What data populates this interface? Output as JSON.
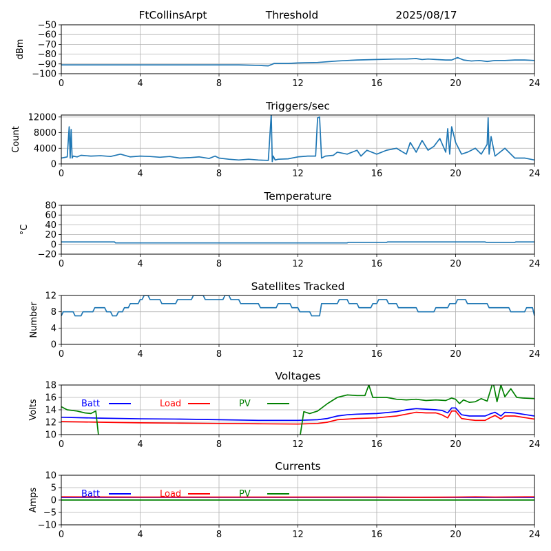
{
  "header": {
    "station": "FtCollinsArpt",
    "metric": "Threshold",
    "date": "2025/08/17"
  },
  "chart_data": [
    {
      "id": "threshold",
      "type": "line",
      "title": "",
      "xlabel": "",
      "ylabel": "dBm",
      "xlim": [
        0,
        24
      ],
      "ylim": [
        -100,
        -50
      ],
      "xticks": [
        0,
        4,
        8,
        12,
        16,
        20,
        24
      ],
      "yticks": [
        -100,
        -90,
        -80,
        -70,
        -60,
        -50
      ],
      "grid": true,
      "series": [
        {
          "color": "#1f77b4",
          "x": [
            0,
            2,
            4,
            6,
            8,
            9,
            10,
            10.5,
            10.8,
            11.5,
            12,
            13,
            14,
            15,
            16,
            17,
            17.5,
            18,
            18.3,
            18.6,
            19,
            19.5,
            19.8,
            20.1,
            20.4,
            20.8,
            21.2,
            21.6,
            22,
            22.5,
            23,
            23.5,
            24
          ],
          "y": [
            -91,
            -91,
            -91,
            -91,
            -91,
            -91,
            -91.5,
            -92,
            -89.5,
            -89.5,
            -89,
            -88.5,
            -87,
            -86,
            -85.5,
            -85,
            -85,
            -84.5,
            -85.5,
            -85,
            -85.5,
            -86,
            -86,
            -83.5,
            -86,
            -87,
            -86.5,
            -87.5,
            -86.5,
            -86.5,
            -86,
            -86,
            -86.5
          ]
        }
      ]
    },
    {
      "id": "triggers",
      "type": "line",
      "title": "Triggers/sec",
      "xlabel": "",
      "ylabel": "Count",
      "xlim": [
        0,
        24
      ],
      "ylim": [
        0,
        12500
      ],
      "xticks": [
        0,
        4,
        8,
        12,
        16,
        20,
        24
      ],
      "yticks": [
        0,
        4000,
        8000,
        12000
      ],
      "grid": true,
      "series": [
        {
          "color": "#1f77b4",
          "x": [
            0,
            0.3,
            0.4,
            0.45,
            0.5,
            0.55,
            0.6,
            0.8,
            1.0,
            1.5,
            2.0,
            2.5,
            3.0,
            3.5,
            4.0,
            4.5,
            5.0,
            5.5,
            6.0,
            6.5,
            7.0,
            7.5,
            7.8,
            8.0,
            8.5,
            9.0,
            9.5,
            10.0,
            10.5,
            10.65,
            10.7,
            10.75,
            10.85,
            11.0,
            11.5,
            12.0,
            12.5,
            12.9,
            13.0,
            13.1,
            13.2,
            13.4,
            13.8,
            14.0,
            14.5,
            15.0,
            15.2,
            15.5,
            16.0,
            16.5,
            17.0,
            17.5,
            17.7,
            18.0,
            18.3,
            18.6,
            18.9,
            19.2,
            19.5,
            19.6,
            19.7,
            19.8,
            20.0,
            20.3,
            20.6,
            21.0,
            21.3,
            21.6,
            21.65,
            21.7,
            21.8,
            22.0,
            22.5,
            23.0,
            23.5,
            24.0
          ],
          "y": [
            1500,
            1800,
            9500,
            1500,
            8800,
            1500,
            2000,
            1800,
            2200,
            2000,
            2100,
            1900,
            2500,
            1800,
            2000,
            1900,
            1700,
            1900,
            1500,
            1600,
            1800,
            1400,
            2000,
            1500,
            1200,
            1000,
            1200,
            1000,
            900,
            12800,
            600,
            2000,
            1000,
            1200,
            1300,
            1800,
            2000,
            2000,
            11800,
            12000,
            1500,
            2000,
            2200,
            3000,
            2500,
            3500,
            2000,
            3500,
            2500,
            3500,
            4000,
            2500,
            5500,
            3000,
            6000,
            3500,
            4500,
            6500,
            3000,
            9000,
            2500,
            9500,
            5500,
            2500,
            3000,
            4000,
            2500,
            5000,
            11800,
            2500,
            7000,
            2000,
            4000,
            1500,
            1500,
            1000
          ]
        }
      ]
    },
    {
      "id": "temperature",
      "type": "line",
      "title": "Temperature",
      "xlabel": "",
      "ylabel": "°C",
      "xlim": [
        0,
        24
      ],
      "ylim": [
        -20,
        80
      ],
      "xticks": [
        0,
        4,
        8,
        12,
        16,
        20,
        24
      ],
      "yticks": [
        -20,
        0,
        20,
        40,
        60,
        80
      ],
      "grid": true,
      "series": [
        {
          "color": "#1f77b4",
          "x": [
            0,
            2.7,
            2.75,
            14.5,
            14.55,
            16.5,
            16.55,
            21.5,
            21.55,
            23.0,
            23.05,
            24
          ],
          "y": [
            5,
            5,
            3,
            3,
            4,
            4,
            5,
            5,
            4,
            4,
            5,
            5
          ]
        }
      ]
    },
    {
      "id": "satellites",
      "type": "line",
      "title": "Satellites Tracked",
      "xlabel": "",
      "ylabel": "Number",
      "xlim": [
        0,
        24
      ],
      "ylim": [
        0,
        12
      ],
      "xticks": [
        0,
        4,
        8,
        12,
        16,
        20,
        24
      ],
      "yticks": [
        0,
        4,
        8,
        12
      ],
      "grid": true,
      "series": [
        {
          "color": "#1f77b4",
          "x": [
            0,
            0.1,
            0.6,
            0.7,
            1.0,
            1.1,
            1.6,
            1.7,
            2.2,
            2.3,
            2.5,
            2.6,
            2.8,
            2.9,
            3.1,
            3.2,
            3.4,
            3.5,
            3.9,
            4.0,
            4.1,
            4.2,
            4.4,
            4.5,
            5.0,
            5.1,
            5.8,
            5.9,
            6.6,
            6.7,
            7.2,
            7.3,
            8.2,
            8.3,
            8.5,
            8.6,
            9.0,
            9.1,
            10.0,
            10.1,
            10.9,
            11.0,
            11.6,
            11.7,
            12.0,
            12.1,
            12.6,
            12.7,
            13.1,
            13.2,
            14.0,
            14.1,
            14.5,
            14.6,
            15.0,
            15.1,
            15.7,
            15.8,
            16.0,
            16.1,
            16.5,
            16.6,
            17.0,
            17.1,
            18.0,
            18.1,
            18.9,
            19.0,
            19.6,
            19.7,
            20.0,
            20.1,
            20.5,
            20.6,
            21.6,
            21.7,
            22.7,
            22.8,
            23.5,
            23.6,
            23.9,
            24.0
          ],
          "y": [
            7,
            8,
            8,
            7,
            7,
            8,
            8,
            9,
            9,
            8,
            8,
            7,
            7,
            8,
            8,
            9,
            9,
            10,
            10,
            11,
            11,
            12,
            12,
            11,
            11,
            10,
            10,
            11,
            11,
            12,
            12,
            11,
            11,
            12,
            12,
            11,
            11,
            10,
            10,
            9,
            9,
            10,
            10,
            9,
            9,
            8,
            8,
            7,
            7,
            10,
            10,
            11,
            11,
            10,
            10,
            9,
            9,
            10,
            10,
            11,
            11,
            10,
            10,
            9,
            9,
            8,
            8,
            9,
            9,
            10,
            10,
            11,
            11,
            10,
            10,
            9,
            9,
            8,
            8,
            9,
            9,
            7
          ]
        }
      ]
    },
    {
      "id": "voltages",
      "type": "line",
      "title": "Voltages",
      "xlabel": "",
      "ylabel": "Volts",
      "xlim": [
        0,
        24
      ],
      "ylim": [
        10,
        18
      ],
      "xticks": [
        0,
        4,
        8,
        12,
        16,
        20,
        24
      ],
      "yticks": [
        10,
        12,
        14,
        16,
        18
      ],
      "grid": true,
      "legend": "top-left, horizontal",
      "series": [
        {
          "name": "Batt",
          "color": "#0000ff",
          "x": [
            0,
            2,
            4,
            6,
            8,
            10,
            12,
            13,
            13.5,
            14,
            14.5,
            15,
            16,
            17,
            17.5,
            18,
            18.5,
            19,
            19.3,
            19.6,
            19.8,
            20.0,
            20.3,
            20.7,
            21.0,
            21.5,
            21.8,
            22.0,
            22.3,
            22.5,
            23.0,
            24
          ],
          "y": [
            12.8,
            12.65,
            12.55,
            12.5,
            12.4,
            12.3,
            12.3,
            12.4,
            12.6,
            13.0,
            13.2,
            13.3,
            13.4,
            13.7,
            14.0,
            14.2,
            14.1,
            14.0,
            13.9,
            13.5,
            14.3,
            14.3,
            13.2,
            13.0,
            13.0,
            13.0,
            13.4,
            13.6,
            13.0,
            13.6,
            13.5,
            13.0
          ]
        },
        {
          "name": "Load",
          "color": "#ff0000",
          "x": [
            0,
            2,
            4,
            6,
            8,
            10,
            12,
            13,
            13.5,
            14,
            14.5,
            15,
            16,
            17,
            17.5,
            18,
            18.5,
            19,
            19.3,
            19.6,
            19.8,
            20.0,
            20.3,
            20.7,
            21.0,
            21.5,
            21.8,
            22.0,
            22.3,
            22.5,
            23.0,
            24
          ],
          "y": [
            12.1,
            12.0,
            11.9,
            11.85,
            11.8,
            11.75,
            11.7,
            11.8,
            12.0,
            12.4,
            12.5,
            12.6,
            12.7,
            13.0,
            13.3,
            13.6,
            13.5,
            13.5,
            13.2,
            12.7,
            13.8,
            13.8,
            12.6,
            12.4,
            12.3,
            12.3,
            12.8,
            13.1,
            12.5,
            13.0,
            13.0,
            12.5
          ]
        },
        {
          "name": "PV",
          "color": "#008000",
          "x": [
            0,
            0.3,
            0.8,
            1.2,
            1.5,
            1.75,
            1.9,
            12.1,
            12.3,
            12.6,
            13.0,
            13.5,
            14.0,
            14.5,
            15.0,
            15.4,
            15.6,
            15.8,
            16.5,
            17.0,
            17.5,
            18.0,
            18.5,
            19.0,
            19.5,
            19.8,
            20.0,
            20.2,
            20.4,
            20.7,
            21.0,
            21.3,
            21.6,
            21.9,
            22.1,
            22.3,
            22.5,
            22.8,
            23.1,
            23.4,
            24.0
          ],
          "y": [
            14.5,
            14.0,
            13.8,
            13.5,
            13.4,
            13.8,
            9.5,
            9.5,
            13.7,
            13.4,
            13.8,
            15.0,
            16.0,
            16.4,
            16.3,
            16.3,
            18.0,
            16.0,
            16.0,
            15.7,
            15.6,
            15.7,
            15.5,
            15.6,
            15.5,
            15.9,
            15.7,
            15.0,
            15.6,
            15.2,
            15.3,
            15.8,
            15.4,
            18.5,
            15.3,
            18.0,
            16.1,
            17.4,
            16.0,
            15.9,
            15.8
          ]
        }
      ]
    },
    {
      "id": "currents",
      "type": "line",
      "title": "Currents",
      "xlabel": "",
      "ylabel": "Amps",
      "xlim": [
        0,
        24
      ],
      "ylim": [
        -10,
        10
      ],
      "xticks": [
        0,
        4,
        8,
        12,
        16,
        20,
        24
      ],
      "yticks": [
        -10,
        -5,
        0,
        5,
        10
      ],
      "grid": true,
      "legend": "top-left, horizontal",
      "series": [
        {
          "name": "Batt",
          "color": "#0000ff",
          "x": [
            0,
            4,
            8,
            12,
            16,
            20,
            24
          ],
          "y": [
            1.1,
            1.1,
            1.1,
            1.1,
            1.1,
            1.1,
            1.1
          ]
        },
        {
          "name": "Load",
          "color": "#ff0000",
          "x": [
            0,
            4,
            8,
            12,
            14,
            16,
            18,
            20,
            21,
            22,
            24
          ],
          "y": [
            1.3,
            1.2,
            1.2,
            1.2,
            1.2,
            1.2,
            1.1,
            1.2,
            1.3,
            1.2,
            1.3
          ]
        },
        {
          "name": "PV",
          "color": "#008000",
          "x": [
            0,
            4,
            8,
            12,
            16,
            20,
            24
          ],
          "y": [
            0,
            0,
            0,
            0,
            0,
            0,
            0
          ]
        }
      ]
    }
  ]
}
